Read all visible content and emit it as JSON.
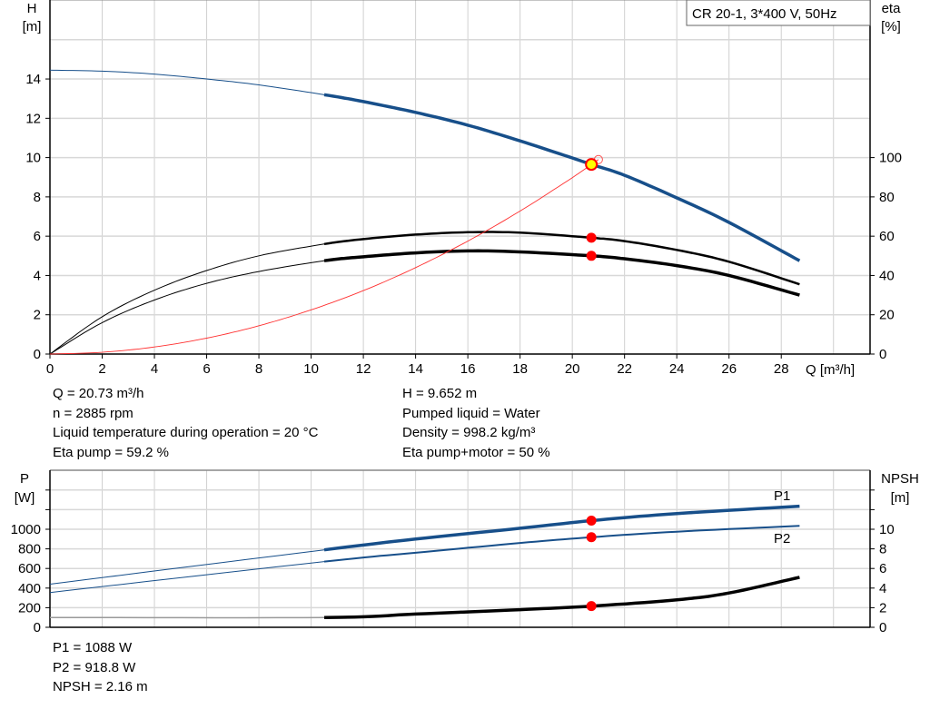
{
  "chart_data": [
    {
      "type": "line",
      "title_box": "CR 20-1, 3*400 V, 50Hz",
      "xlabel": "Q [m³/h]",
      "ylabel_left": [
        "H",
        "[m]"
      ],
      "ylabel_right": [
        "eta",
        "[%]"
      ],
      "xlim": [
        0,
        31.4
      ],
      "ylim_left": [
        0,
        18
      ],
      "ylim_right": [
        0,
        180
      ],
      "x_ticks": [
        "0",
        "2",
        "4",
        "6",
        "8",
        "10",
        "12",
        "14",
        "16",
        "18",
        "20",
        "22",
        "24",
        "26",
        "28"
      ],
      "y_ticks_left": [
        "0",
        "2",
        "4",
        "6",
        "8",
        "10",
        "12",
        "14"
      ],
      "y_ticks_right": [
        "0",
        "20",
        "40",
        "60",
        "80",
        "100"
      ],
      "grid": true,
      "series": [
        {
          "key": "H",
          "axis": "left",
          "color": "#174f8a",
          "x": [
            0,
            2,
            4,
            6,
            8,
            10.5,
            12,
            14,
            16,
            18,
            20,
            20.73,
            22,
            24,
            26,
            28.7
          ],
          "y": [
            14.45,
            14.4,
            14.25,
            14.0,
            13.7,
            13.2,
            12.85,
            12.3,
            11.65,
            10.85,
            9.98,
            9.652,
            9.1,
            7.95,
            6.7,
            4.75
          ]
        },
        {
          "key": "eta_pump",
          "axis": "right",
          "color": "#000000",
          "x": [
            0,
            2,
            4,
            6,
            8,
            10.5,
            12,
            14,
            16,
            18,
            20.73,
            22,
            24,
            26,
            28.7
          ],
          "y": [
            0,
            19,
            32.5,
            42.5,
            50,
            56,
            58.5,
            60.8,
            62,
            61.8,
            59.2,
            57.5,
            53,
            47,
            35.5
          ]
        },
        {
          "key": "eta_pump_motor",
          "axis": "right",
          "color": "#000000",
          "x": [
            0,
            2,
            4,
            6,
            8,
            10.5,
            12,
            14,
            16,
            18,
            20.73,
            22,
            24,
            26,
            28.7
          ],
          "y": [
            0,
            16,
            27.5,
            36,
            42,
            47.5,
            49.5,
            51.5,
            52.5,
            52,
            50,
            48.5,
            45,
            40,
            30
          ]
        },
        {
          "key": "system_curve",
          "axis": "left",
          "color": "#ff3030",
          "x": [
            0,
            2,
            4,
            6,
            8,
            10,
            12,
            14,
            16,
            18,
            20,
            21
          ],
          "y": [
            0,
            0.09,
            0.36,
            0.81,
            1.44,
            2.25,
            3.23,
            4.4,
            5.75,
            7.28,
            8.98,
            9.9
          ]
        }
      ],
      "operating_points": [
        {
          "series": "H",
          "x": 20.73,
          "y": 9.652
        },
        {
          "series": "eta_pump",
          "x": 20.73,
          "y": 59.2
        },
        {
          "series": "eta_pump_motor",
          "x": 20.73,
          "y": 50
        }
      ],
      "info_left": [
        "Q = 20.73 m³/h",
        "n = 2885 rpm",
        "Liquid temperature during operation = 20 °C",
        "Eta pump = 59.2 %"
      ],
      "info_right": [
        "H = 9.652 m",
        "Pumped liquid = Water",
        "Density = 998.2 kg/m³",
        "Eta pump+motor = 50 %"
      ]
    },
    {
      "type": "line",
      "xlim": [
        0,
        31.4
      ],
      "ylabel_left": [
        "P",
        "[W]"
      ],
      "ylabel_right": [
        "NPSH",
        "[m]"
      ],
      "ylim_left": [
        0,
        1600
      ],
      "ylim_right": [
        0,
        16
      ],
      "y_ticks_left": [
        "0",
        "200",
        "400",
        "600",
        "800",
        "1000"
      ],
      "y_ticks_right": [
        "0",
        "2",
        "4",
        "6",
        "8",
        "10"
      ],
      "grid": true,
      "series": [
        {
          "name": "P1",
          "axis": "left",
          "color": "#174f8a",
          "x": [
            0,
            10.5,
            14,
            18,
            20.73,
            24,
            28.7
          ],
          "y": [
            440,
            790,
            900,
            1010,
            1088,
            1160,
            1235
          ]
        },
        {
          "name": "P2",
          "axis": "left",
          "color": "#174f8a",
          "x": [
            0,
            10.5,
            14,
            18,
            20.73,
            24,
            28.7
          ],
          "y": [
            355,
            670,
            760,
            860,
            918.8,
            975,
            1035
          ]
        },
        {
          "key": "NPSH",
          "axis": "right",
          "color": "#000000",
          "x": [
            0,
            10.5,
            14,
            18,
            20.73,
            24,
            26,
            28.7
          ],
          "y": [
            1.0,
            1.0,
            1.35,
            1.8,
            2.16,
            2.8,
            3.5,
            5.1
          ]
        }
      ],
      "operating_points": [
        {
          "series": "P1",
          "x": 20.73,
          "y": 1088
        },
        {
          "series": "P2",
          "x": 20.73,
          "y": 918.8
        },
        {
          "series": "NPSH",
          "x": 20.73,
          "y": 2.16
        }
      ],
      "info": [
        "P1 = 1088 W",
        "P2 = 918.8 W",
        "NPSH = 2.16 m"
      ]
    }
  ]
}
